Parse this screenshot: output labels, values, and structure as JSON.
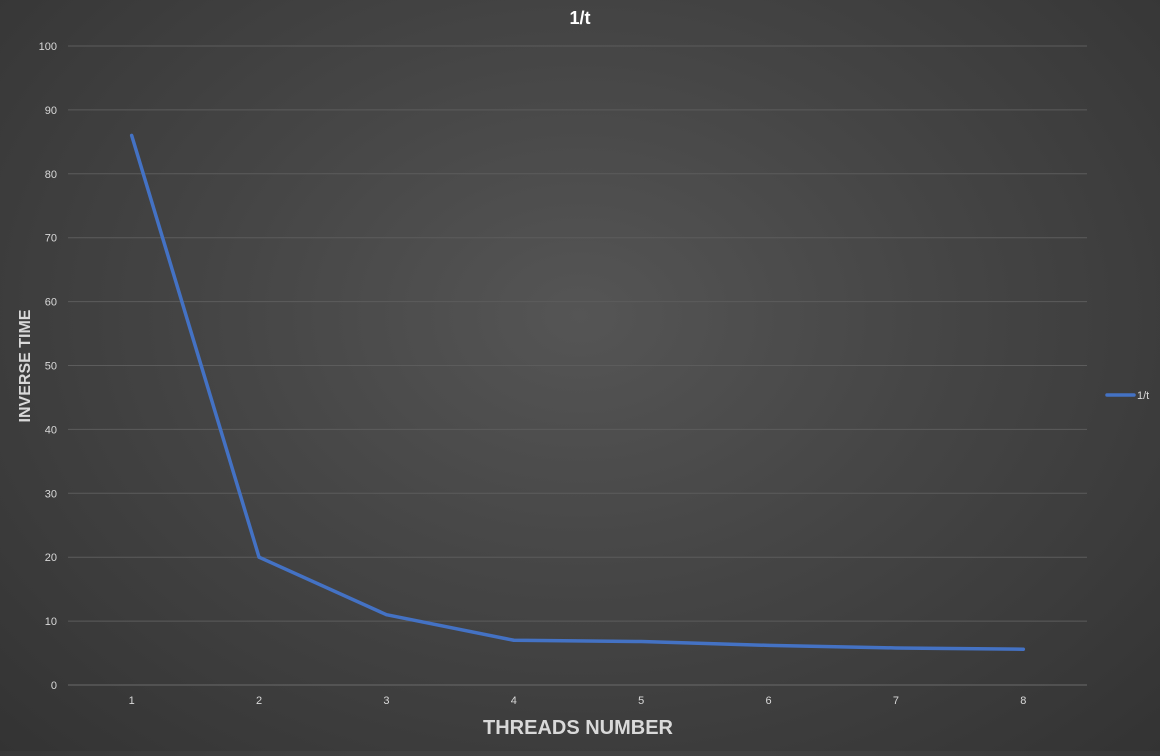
{
  "chart_data": {
    "type": "line",
    "title": "1/t",
    "xlabel": "THREADS NUMBER",
    "ylabel": "INVERSE TIME",
    "categories": [
      "1",
      "2",
      "3",
      "4",
      "5",
      "6",
      "7",
      "8"
    ],
    "series": [
      {
        "name": "1/t",
        "values": [
          86,
          20,
          11,
          7,
          6.8,
          6.2,
          5.8,
          5.6
        ],
        "color": "#4472c4"
      }
    ],
    "ylim": [
      0,
      100
    ],
    "yticks": [
      0,
      10,
      20,
      30,
      40,
      50,
      60,
      70,
      80,
      90,
      100
    ],
    "grid": true,
    "legend": "right"
  }
}
